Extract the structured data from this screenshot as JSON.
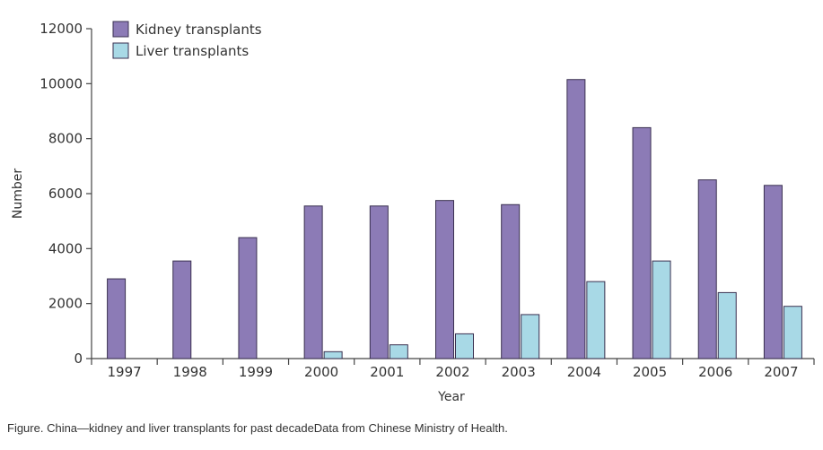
{
  "chart_data": {
    "type": "bar",
    "categories": [
      "1997",
      "1998",
      "1999",
      "2000",
      "2001",
      "2002",
      "2003",
      "2004",
      "2005",
      "2006",
      "2007"
    ],
    "series": [
      {
        "name": "Kidney transplants",
        "color": "#8c7bb6",
        "values": [
          2900,
          3550,
          4400,
          5550,
          5550,
          5750,
          5600,
          10150,
          8400,
          6500,
          6300
        ]
      },
      {
        "name": "Liver transplants",
        "color": "#a8d9e6",
        "values": [
          0,
          0,
          0,
          250,
          500,
          900,
          1600,
          2800,
          3550,
          2400,
          1900
        ]
      }
    ],
    "xlabel": "Year",
    "ylabel": "Number",
    "ylim": [
      0,
      12000
    ],
    "yticks": [
      0,
      2000,
      4000,
      6000,
      8000,
      10000,
      12000
    ],
    "ytick_labels": [
      "0",
      "2000",
      "4000",
      "6000",
      "8000",
      "10000",
      "12000"
    ],
    "legend_position": "top-left",
    "grid": false
  },
  "caption": "Figure. China—kidney and liver transplants for past decadeData from Chinese Ministry of Health."
}
